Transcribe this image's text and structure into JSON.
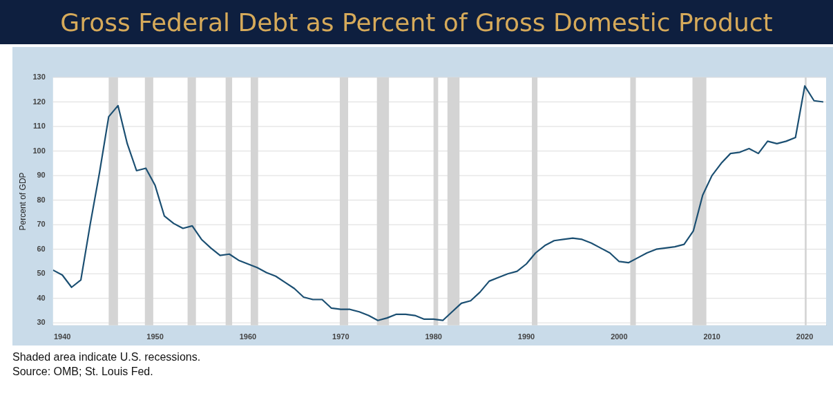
{
  "chart_data": {
    "type": "line",
    "title": "Gross Federal Debt as Percent of Gross Domestic Product",
    "ylabel": "Percent of GDP",
    "x": [
      1939,
      1940,
      1941,
      1942,
      1943,
      1944,
      1945,
      1946,
      1947,
      1948,
      1949,
      1950,
      1951,
      1952,
      1953,
      1954,
      1955,
      1956,
      1957,
      1958,
      1959,
      1960,
      1961,
      1962,
      1963,
      1964,
      1965,
      1966,
      1967,
      1968,
      1969,
      1970,
      1971,
      1972,
      1973,
      1974,
      1975,
      1976,
      1977,
      1978,
      1979,
      1980,
      1981,
      1982,
      1983,
      1984,
      1985,
      1986,
      1987,
      1988,
      1989,
      1990,
      1991,
      1992,
      1993,
      1994,
      1995,
      1996,
      1997,
      1998,
      1999,
      2000,
      2001,
      2002,
      2003,
      2004,
      2005,
      2006,
      2007,
      2008,
      2009,
      2010,
      2011,
      2012,
      2013,
      2014,
      2015,
      2016,
      2017,
      2018,
      2019,
      2020,
      2021,
      2022
    ],
    "series": [
      {
        "color": "#1b4f72",
        "values": [
          51.5,
          49.5,
          44.5,
          47.5,
          70,
          91,
          114,
          118.5,
          103,
          92,
          93,
          86,
          73.5,
          70.5,
          68.5,
          69.5,
          64,
          60.5,
          57.5,
          58,
          55.5,
          54,
          52.5,
          50.5,
          49,
          46.5,
          44,
          40.5,
          39.5,
          39.5,
          36,
          35.5,
          35.5,
          34.5,
          33,
          31,
          32,
          33.5,
          33.5,
          33,
          31.5,
          31.5,
          31,
          34.5,
          38,
          39,
          42.5,
          47,
          48.5,
          50,
          51,
          54,
          58.5,
          61.5,
          63.5,
          64,
          64.5,
          64,
          62.5,
          60.5,
          58.5,
          55,
          54.5,
          56.5,
          58.5,
          60,
          60.5,
          61,
          62,
          67.5,
          82,
          90,
          95,
          99,
          99.5,
          101,
          99,
          104,
          103,
          104,
          105.5,
          126.5,
          120.5,
          120
        ]
      }
    ],
    "xlim": [
      1939,
      2022.3
    ],
    "xticks": [
      1940,
      1950,
      1960,
      1970,
      1980,
      1990,
      2000,
      2010,
      2020
    ],
    "ylim": [
      29,
      130
    ],
    "yticks": [
      30,
      40,
      50,
      60,
      70,
      80,
      90,
      100,
      110,
      120,
      130
    ],
    "grid": "y",
    "legend": false,
    "marker": "none",
    "line_style": "solid",
    "bands": [
      {
        "axis": "x",
        "from": 1945.0,
        "to": 1946.0,
        "color": "#d4d4d4"
      },
      {
        "axis": "x",
        "from": 1948.9,
        "to": 1949.8,
        "color": "#d4d4d4"
      },
      {
        "axis": "x",
        "from": 1953.5,
        "to": 1954.4,
        "color": "#d4d4d4"
      },
      {
        "axis": "x",
        "from": 1957.6,
        "to": 1958.3,
        "color": "#d4d4d4"
      },
      {
        "axis": "x",
        "from": 1960.3,
        "to": 1961.1,
        "color": "#d4d4d4"
      },
      {
        "axis": "x",
        "from": 1969.9,
        "to": 1970.8,
        "color": "#d4d4d4"
      },
      {
        "axis": "x",
        "from": 1973.9,
        "to": 1975.2,
        "color": "#d4d4d4"
      },
      {
        "axis": "x",
        "from": 1980.0,
        "to": 1980.5,
        "color": "#d4d4d4"
      },
      {
        "axis": "x",
        "from": 1981.5,
        "to": 1982.8,
        "color": "#d4d4d4"
      },
      {
        "axis": "x",
        "from": 1990.6,
        "to": 1991.2,
        "color": "#d4d4d4"
      },
      {
        "axis": "x",
        "from": 2001.2,
        "to": 2001.8,
        "color": "#d4d4d4"
      },
      {
        "axis": "x",
        "from": 2007.9,
        "to": 2009.4,
        "color": "#d4d4d4"
      },
      {
        "axis": "x",
        "from": 2020.0,
        "to": 2020.2,
        "color": "#d4d4d4"
      }
    ],
    "annotations": [
      "Shaded area indicate U.S. recessions.",
      "Source: OMB; St. Louis Fed."
    ]
  }
}
